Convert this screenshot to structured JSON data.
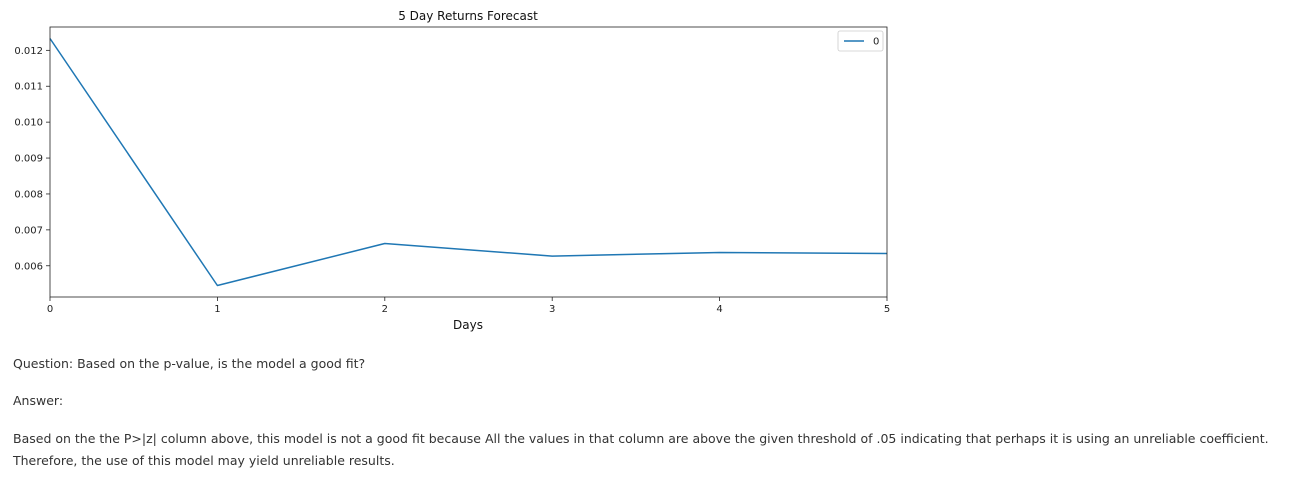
{
  "chart_data": {
    "type": "line",
    "title": "5 Day Returns Forecast",
    "xlabel": "Days",
    "ylabel": "",
    "x": [
      0,
      1,
      2,
      3,
      4,
      5
    ],
    "xlim": [
      0,
      5
    ],
    "ylim": [
      0.00513,
      0.01265
    ],
    "xticks": [
      "0",
      "1",
      "2",
      "3",
      "4",
      "5"
    ],
    "yticks": [
      0.006,
      0.007,
      0.008,
      0.009,
      0.01,
      0.011,
      0.012
    ],
    "yticklabels": [
      "0.006",
      "0.007",
      "0.008",
      "0.009",
      "0.010",
      "0.011",
      "0.012"
    ],
    "series": [
      {
        "name": "0",
        "color": "#1f77b4",
        "values": [
          0.01233,
          0.00545,
          0.00662,
          0.00627,
          0.00637,
          0.00634
        ]
      }
    ],
    "legend": "top-right",
    "grid": false
  },
  "text": {
    "question": "Question: Based on the p-value, is the model a good fit?",
    "answer_label": "Answer:",
    "answer_body": "Based on the the P>|z| column above, this model is not a good fit because All the values in that column are above the given threshold of .05 indicating that perhaps it is using an unreliable coefficient. Therefore, the use of this model may yield unreliable results."
  }
}
